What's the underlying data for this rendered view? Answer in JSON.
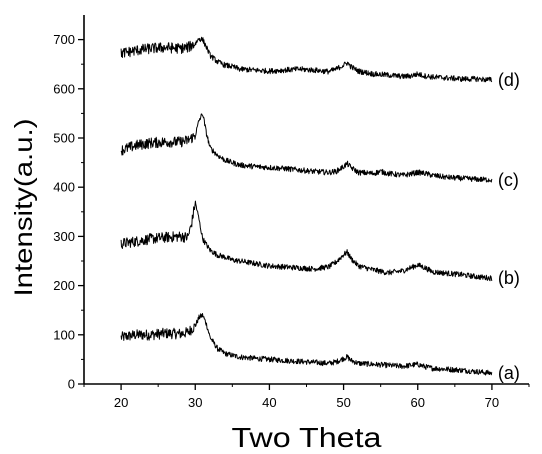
{
  "chart_data": {
    "type": "line",
    "xlabel": "Two Theta",
    "ylabel": "Intensity(a.u.)",
    "xlim": [
      15,
      75
    ],
    "ylim": [
      0,
      750
    ],
    "xticks": [
      20,
      30,
      40,
      50,
      60,
      70
    ],
    "yticks": [
      0,
      100,
      200,
      300,
      400,
      500,
      600,
      700
    ],
    "grid": false,
    "legend": "none",
    "colors": {
      "line": "#000000",
      "axis": "#000000",
      "background": "#ffffff"
    },
    "series": [
      {
        "name": "(a)",
        "x": [
          20,
          22,
          24,
          26,
          28,
          29,
          30,
          30.5,
          31,
          31.5,
          32,
          33,
          34,
          35,
          36,
          38,
          40,
          42,
          45,
          48,
          49,
          50,
          50.5,
          51,
          52,
          54,
          56,
          58,
          59,
          60,
          61,
          62,
          64,
          66,
          68,
          70
        ],
        "y": [
          95,
          100,
          100,
          103,
          102,
          105,
          118,
          135,
          140,
          122,
          95,
          72,
          62,
          58,
          55,
          52,
          50,
          48,
          45,
          42,
          45,
          52,
          55,
          48,
          42,
          40,
          38,
          36,
          38,
          40,
          35,
          32,
          30,
          28,
          25,
          22
        ]
      },
      {
        "name": "(b)",
        "x": [
          20,
          22,
          24,
          26,
          28,
          29,
          29.5,
          30,
          30.5,
          31,
          32,
          33,
          34,
          35,
          36,
          38,
          40,
          42,
          44,
          46,
          48,
          49,
          50,
          50.5,
          51,
          52,
          54,
          56,
          58,
          59,
          60,
          61,
          62,
          64,
          66,
          68,
          70
        ],
        "y": [
          285,
          290,
          295,
          298,
          300,
          298,
          325,
          370,
          335,
          295,
          272,
          262,
          258,
          252,
          250,
          245,
          240,
          238,
          236,
          234,
          238,
          248,
          263,
          268,
          255,
          240,
          232,
          226,
          230,
          236,
          242,
          236,
          228,
          225,
          222,
          218,
          215
        ]
      },
      {
        "name": "(c)",
        "x": [
          20,
          22,
          24,
          26,
          28,
          29,
          30,
          30.5,
          31,
          31.5,
          32,
          33,
          34,
          35,
          36,
          38,
          40,
          42,
          44,
          46,
          48,
          49,
          50,
          50.5,
          51,
          52,
          54,
          55,
          56,
          58,
          60,
          61,
          62,
          64,
          66,
          68,
          70
        ],
        "y": [
          475,
          485,
          490,
          492,
          492,
          495,
          505,
          535,
          550,
          510,
          480,
          465,
          455,
          450,
          445,
          442,
          440,
          438,
          435,
          432,
          430,
          432,
          442,
          448,
          440,
          430,
          428,
          432,
          428,
          424,
          430,
          428,
          424,
          420,
          418,
          416,
          415
        ]
      },
      {
        "name": "(d)",
        "x": [
          20,
          22,
          24,
          26,
          28,
          29,
          30,
          30.5,
          31,
          31.5,
          32,
          33,
          34,
          35,
          36,
          38,
          40,
          42,
          44,
          46,
          48,
          49,
          50,
          50.5,
          51,
          52,
          54,
          56,
          58,
          59,
          60,
          61,
          62,
          64,
          66,
          68,
          70
        ],
        "y": [
          672,
          678,
          682,
          684,
          682,
          684,
          692,
          702,
          700,
          685,
          668,
          655,
          648,
          645,
          640,
          638,
          636,
          638,
          640,
          638,
          635,
          640,
          648,
          653,
          645,
          636,
          630,
          628,
          625,
          626,
          630,
          626,
          624,
          622,
          620,
          620,
          618
        ]
      }
    ]
  }
}
